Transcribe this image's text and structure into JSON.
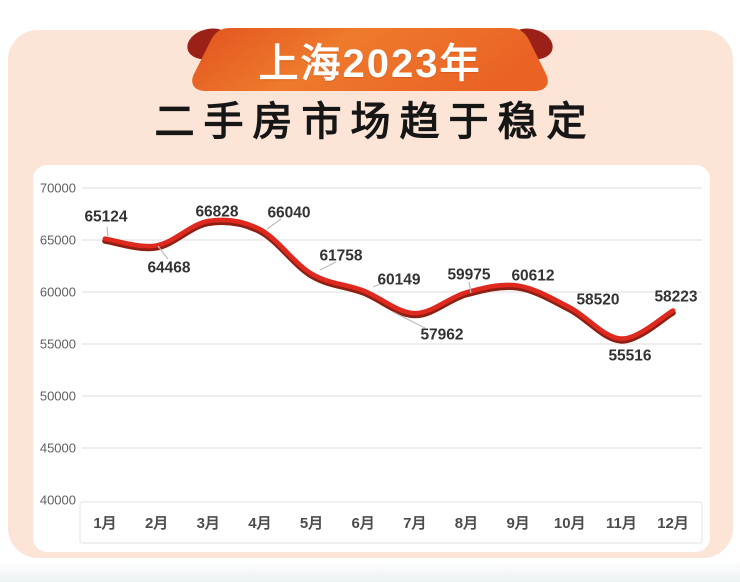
{
  "badge": {
    "label": "上海2023年"
  },
  "chart_data": {
    "type": "line",
    "title": "二手房市场趋于稳定",
    "categories": [
      "1月",
      "2月",
      "3月",
      "4月",
      "5月",
      "6月",
      "7月",
      "8月",
      "9月",
      "10月",
      "11月",
      "12月"
    ],
    "values": [
      65124,
      64468,
      66828,
      66040,
      61758,
      60149,
      57962,
      59975,
      60612,
      58520,
      55516,
      58223
    ],
    "xlabel": "",
    "ylabel": "",
    "ylim": [
      40000,
      70000
    ],
    "ytick_step": 5000,
    "grid": true,
    "legend": "none",
    "line_color": "#df291f",
    "line_shadow_color": "#8f1f13",
    "data_label_color": "#333333",
    "axis_text_color": "#5f5f5f",
    "gridline_color": "#e4e4e4",
    "axis_box_border_color": "#e8e8e8"
  },
  "colors": {
    "card_bg": "#fce4d6",
    "panel_bg": "#ffffff",
    "badge_gradient_start": "#e2531e",
    "badge_gradient_mid": "#ee7a2c",
    "badge_gradient_end": "#ea6325",
    "badge_curl": "#9b2018",
    "badge_text": "#ffffff",
    "title_text": "#161616"
  }
}
